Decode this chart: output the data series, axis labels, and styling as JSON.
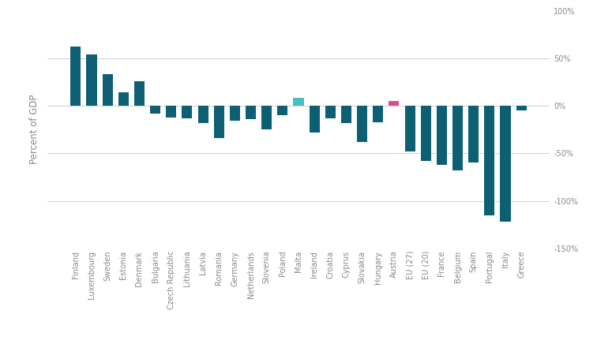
{
  "categories": [
    "Finland",
    "Luxembourg",
    "Sweden",
    "Estonia",
    "Denmark",
    "Bulgaria",
    "Czech Republic",
    "Lithuania",
    "Latvia",
    "Romania",
    "Germany",
    "Netherlands",
    "Slovenia",
    "Poland",
    "Malta",
    "Ireland",
    "Croatia",
    "Cyprus",
    "Slovakia",
    "Hungary",
    "Austria",
    "EU (27)",
    "EU (20)",
    "France",
    "Belgium",
    "Spain",
    "Portugal",
    "Italy",
    "Greece"
  ],
  "values": [
    62,
    54,
    33,
    14,
    26,
    -8,
    -12,
    -13,
    -18,
    -34,
    -16,
    -14,
    -25,
    -10,
    8,
    -28,
    -13,
    -18,
    -38,
    -17,
    5,
    -48,
    -58,
    -62,
    -68,
    -60,
    -115,
    -122,
    -5
  ],
  "colors": [
    "#0d5f74",
    "#0d5f74",
    "#0d5f74",
    "#0d5f74",
    "#0d5f74",
    "#0d5f74",
    "#0d5f74",
    "#0d5f74",
    "#0d5f74",
    "#0d5f74",
    "#0d5f74",
    "#0d5f74",
    "#0d5f74",
    "#0d5f74",
    "#4abfbf",
    "#0d5f74",
    "#0d5f74",
    "#0d5f74",
    "#0d5f74",
    "#0d5f74",
    "#d94f8a",
    "#0d5f74",
    "#0d5f74",
    "#0d5f74",
    "#0d5f74",
    "#0d5f74",
    "#0d5f74",
    "#0d5f74",
    "#0d5f74"
  ],
  "ylabel": "Percent of GDP",
  "ylim": [
    -150,
    100
  ],
  "yticks": [
    -150,
    -100,
    -50,
    0,
    50,
    100
  ],
  "ytick_labels": [
    "-150%",
    "-100%",
    "-50%",
    "0%",
    "50%",
    "100%"
  ],
  "background_color": "#ffffff",
  "grid_color": "#d0d0d0",
  "bar_width": 0.65,
  "ylabel_fontsize": 8.5,
  "tick_fontsize": 7,
  "label_color": "#888888"
}
